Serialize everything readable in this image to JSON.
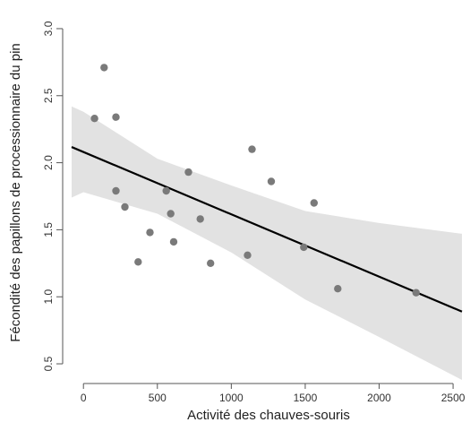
{
  "chart_data": {
    "type": "scatter",
    "title": "",
    "xlabel": "Activité des chauves-souris",
    "ylabel": "Fécondité des papillons de processionnaire du pin",
    "xlim": [
      -80,
      2560
    ],
    "ylim": [
      0.42,
      3.08
    ],
    "x_ticks": [
      0,
      500,
      1000,
      1500,
      2000,
      2500
    ],
    "y_ticks": [
      0.5,
      1.0,
      1.5,
      2.0,
      2.5,
      3.0
    ],
    "x_tick_labels": [
      "0",
      "500",
      "1000",
      "1500",
      "2000",
      "2500"
    ],
    "y_tick_labels": [
      "0.5",
      "1.0",
      "1.5",
      "2.0",
      "2.5",
      "3.0"
    ],
    "grid": false,
    "colors": {
      "points": "#7a7a7a",
      "fit_line": "#000000",
      "confidence_band": "#e2e2e2",
      "axis": "#555555"
    },
    "points": [
      {
        "x": 75,
        "y": 2.33
      },
      {
        "x": 140,
        "y": 2.71
      },
      {
        "x": 220,
        "y": 2.34
      },
      {
        "x": 220,
        "y": 1.79
      },
      {
        "x": 280,
        "y": 1.67
      },
      {
        "x": 370,
        "y": 1.26
      },
      {
        "x": 450,
        "y": 1.48
      },
      {
        "x": 560,
        "y": 1.79
      },
      {
        "x": 590,
        "y": 1.62
      },
      {
        "x": 610,
        "y": 1.41
      },
      {
        "x": 710,
        "y": 1.93
      },
      {
        "x": 790,
        "y": 1.58
      },
      {
        "x": 860,
        "y": 1.25
      },
      {
        "x": 1110,
        "y": 1.31
      },
      {
        "x": 1140,
        "y": 2.1
      },
      {
        "x": 1270,
        "y": 1.86
      },
      {
        "x": 1490,
        "y": 1.37
      },
      {
        "x": 1560,
        "y": 1.7
      },
      {
        "x": 1720,
        "y": 1.06
      },
      {
        "x": 2250,
        "y": 1.03
      }
    ],
    "fit": {
      "intercept": 2.08,
      "slope": -0.000465
    },
    "confidence_band": {
      "x": [
        -80,
        0,
        500,
        1000,
        1500,
        2000,
        2560
      ],
      "lower": [
        1.74,
        1.78,
        1.62,
        1.33,
        0.98,
        0.7,
        0.38
      ],
      "upper": [
        2.42,
        2.38,
        2.03,
        1.83,
        1.64,
        1.55,
        1.47
      ]
    }
  }
}
